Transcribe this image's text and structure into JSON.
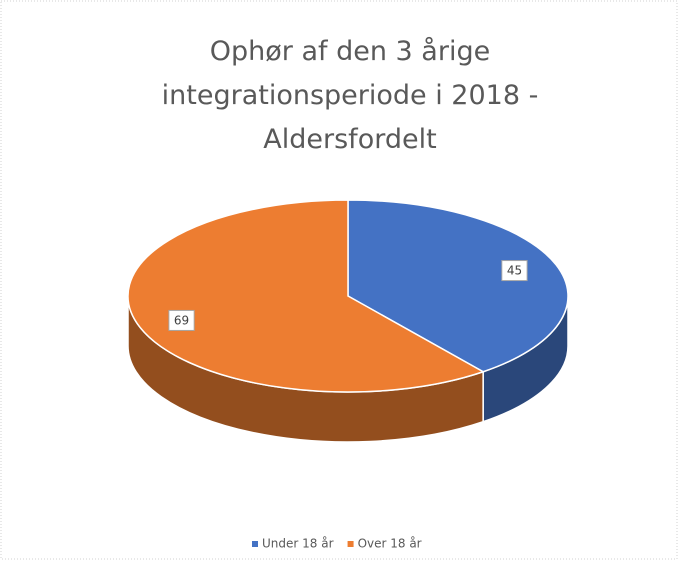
{
  "chart_data": {
    "type": "pie3d",
    "title": "Ophør af den 3 årige integrationsperiode i 2018 - Aldersfordelt",
    "categories": [
      "Under 18 år",
      "Over 18 år"
    ],
    "values": [
      45,
      69
    ],
    "colors": [
      "#4472c4",
      "#ed7d31"
    ],
    "legend": "bottom"
  }
}
